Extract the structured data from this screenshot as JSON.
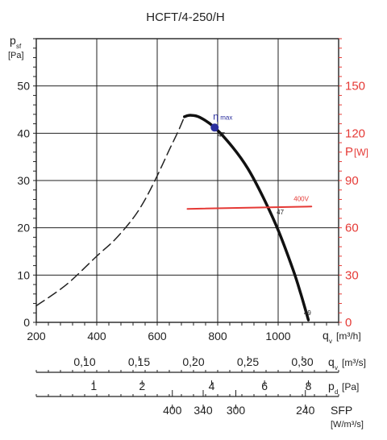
{
  "chart_data": {
    "type": "line",
    "title": "HCFT/4-250/H",
    "ylabel": {
      "main": "p",
      "sub": "sf",
      "unit": "[Pa]"
    },
    "y2label": {
      "main": "P",
      "unit": "[W]"
    },
    "xlim": [
      200,
      1200
    ],
    "ylim": [
      0,
      60
    ],
    "y2lim": [
      0,
      180
    ],
    "grid": true,
    "x_ticks": [
      "200",
      "400",
      "600",
      "800",
      "1000"
    ],
    "x_tick_values": [
      200,
      400,
      600,
      800,
      1000
    ],
    "y_ticks": [
      "0",
      "10",
      "20",
      "30",
      "40",
      "50"
    ],
    "y_tick_values": [
      0,
      10,
      20,
      30,
      40,
      50
    ],
    "y2_ticks": [
      "0",
      "30",
      "60",
      "90",
      "120",
      "150"
    ],
    "y2_tick_values": [
      0,
      30,
      60,
      90,
      120,
      150
    ],
    "series": [
      {
        "role": "unstable-region",
        "style": "dashed",
        "color": "#222222",
        "x": [
          200,
          300,
          400,
          460,
          520,
          560,
          600,
          640,
          670,
          690
        ],
        "y": [
          3.5,
          8,
          14,
          17.5,
          22,
          26,
          31,
          36.5,
          40.5,
          43.5
        ]
      },
      {
        "role": "pressure-curve",
        "style": "solid",
        "color": "#111111",
        "x": [
          690,
          710,
          740,
          790,
          850,
          900,
          950,
          1000,
          1050,
          1075,
          1100
        ],
        "y": [
          43.5,
          43.8,
          43.4,
          41.2,
          37,
          32.5,
          26.5,
          19.5,
          11,
          6,
          0.5
        ]
      },
      {
        "name": "400V",
        "axis": "y2",
        "style": "solid",
        "color": "#e53935",
        "x": [
          700,
          1110
        ],
        "y": [
          72,
          73.5
        ]
      }
    ],
    "annotations": [
      {
        "kind": "point",
        "label": "η",
        "sublabel": "max",
        "x": 790,
        "y": 41.2,
        "color": "#2b2f9e"
      },
      {
        "kind": "text",
        "label": "47",
        "x": 800,
        "y": 39.2
      },
      {
        "kind": "text",
        "label": "47",
        "x": 995,
        "y": 22.8
      },
      {
        "kind": "text",
        "label": "49",
        "x": 1085,
        "y": 1.5
      }
    ],
    "x_axis_label": {
      "main": "q",
      "sub": "v",
      "unit": "[m³/h]"
    },
    "secondary_scales": [
      {
        "label_main": "q",
        "label_sub": "v",
        "label_unit": "[m³/s]",
        "ticks": [
          {
            "label": "0,10",
            "at": 360
          },
          {
            "label": "0,15",
            "at": 540
          },
          {
            "label": "0,20",
            "at": 720
          },
          {
            "label": "0,25",
            "at": 900
          },
          {
            "label": "0,30",
            "at": 1080
          }
        ]
      },
      {
        "label_main": "p",
        "label_sub": "d",
        "label_unit": "[Pa]",
        "ticks": [
          {
            "label": "1",
            "at": 390
          },
          {
            "label": "2",
            "at": 550
          },
          {
            "label": "4",
            "at": 780
          },
          {
            "label": "6",
            "at": 955
          },
          {
            "label": "8",
            "at": 1100
          }
        ]
      },
      {
        "label_main": "SFP",
        "label_unit": "[W/m³/s]",
        "ticks": [
          {
            "label": "400",
            "at": 650
          },
          {
            "label": "340",
            "at": 752
          },
          {
            "label": "300",
            "at": 860
          },
          {
            "label": "240",
            "at": 1090
          }
        ]
      }
    ]
  }
}
